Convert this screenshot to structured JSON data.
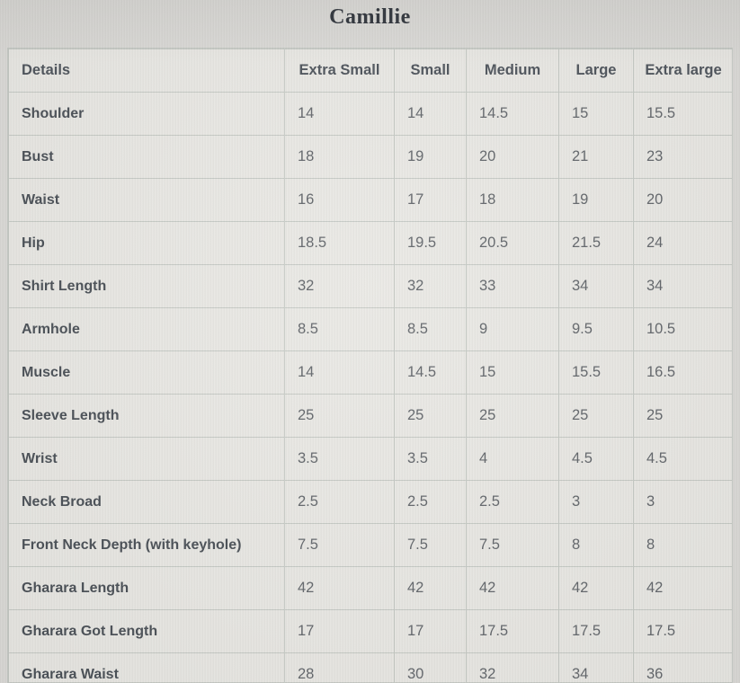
{
  "title": "Camillie",
  "table": {
    "columns": [
      "Details",
      "Extra Small",
      "Small",
      "Medium",
      "Large",
      "Extra large"
    ],
    "rows": [
      {
        "label": "Shoulder",
        "values": [
          "14",
          "14",
          "14.5",
          "15",
          "15.5"
        ]
      },
      {
        "label": "Bust",
        "values": [
          "18",
          "19",
          "20",
          "21",
          "23"
        ]
      },
      {
        "label": "Waist",
        "values": [
          "16",
          "17",
          "18",
          "19",
          "20"
        ]
      },
      {
        "label": "Hip",
        "values": [
          "18.5",
          "19.5",
          "20.5",
          "21.5",
          "24"
        ]
      },
      {
        "label": "Shirt Length",
        "values": [
          "32",
          "32",
          "33",
          "34",
          "34"
        ]
      },
      {
        "label": "Armhole",
        "values": [
          "8.5",
          "8.5",
          "9",
          "9.5",
          "10.5"
        ]
      },
      {
        "label": "Muscle",
        "values": [
          "14",
          "14.5",
          "15",
          "15.5",
          "16.5"
        ]
      },
      {
        "label": "Sleeve Length",
        "values": [
          "25",
          "25",
          "25",
          "25",
          "25"
        ]
      },
      {
        "label": "Wrist",
        "values": [
          "3.5",
          "3.5",
          "4",
          "4.5",
          "4.5"
        ]
      },
      {
        "label": "Neck Broad",
        "values": [
          "2.5",
          "2.5",
          "2.5",
          "3",
          "3"
        ]
      },
      {
        "label": "Front Neck Depth (with keyhole)",
        "values": [
          "7.5",
          "7.5",
          "7.5",
          "8",
          "8"
        ]
      },
      {
        "label": "Gharara Length",
        "values": [
          "42",
          "42",
          "42",
          "42",
          "42"
        ]
      },
      {
        "label": "Gharara Got Length",
        "values": [
          "17",
          "17",
          "17.5",
          "17.5",
          "17.5"
        ]
      },
      {
        "label": "Gharara Waist",
        "values": [
          "28",
          "30",
          "32",
          "34",
          "36"
        ]
      }
    ]
  },
  "colors": {
    "page_background": "#dcdbd8",
    "cell_background": "#eae9e5",
    "border": "#c7cbc6",
    "title_text": "#2b3038",
    "header_text": "#4c525a",
    "label_text": "#484e55",
    "value_text": "#61656a"
  }
}
